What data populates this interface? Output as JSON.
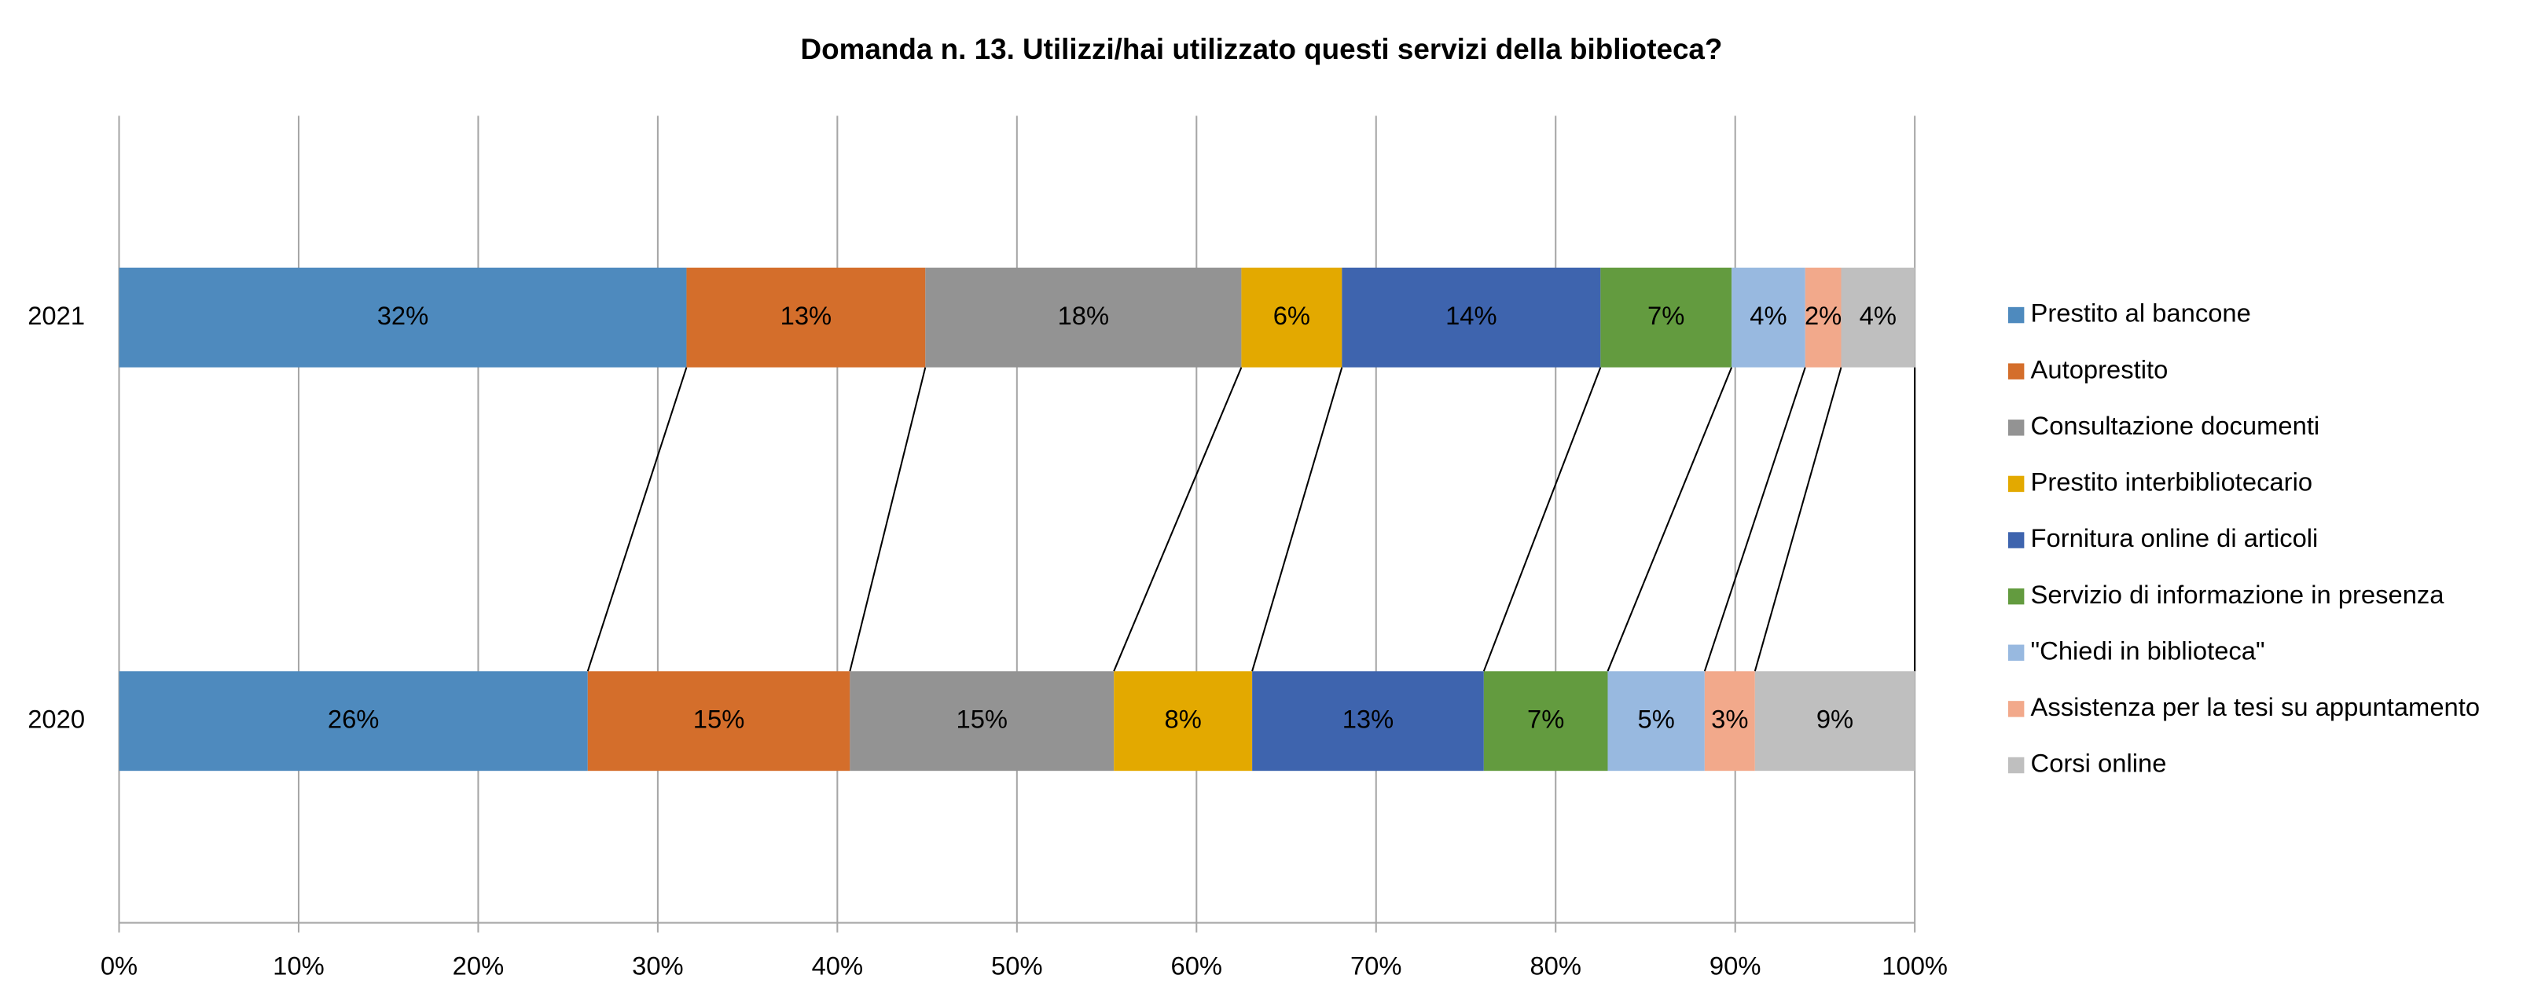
{
  "chart_data": {
    "type": "stacked_bar_horizontal_100",
    "title": "Domanda n. 13. Utilizzi/hai utilizzato questi servizi della biblioteca?",
    "categories": [
      "2021",
      "2020"
    ],
    "xlim": [
      0,
      100
    ],
    "xticks": [
      {
        "value": 0,
        "label": "0%"
      },
      {
        "value": 10,
        "label": "10%"
      },
      {
        "value": 20,
        "label": "20%"
      },
      {
        "value": 30,
        "label": "30%"
      },
      {
        "value": 40,
        "label": "40%"
      },
      {
        "value": 50,
        "label": "50%"
      },
      {
        "value": 60,
        "label": "60%"
      },
      {
        "value": 70,
        "label": "70%"
      },
      {
        "value": 80,
        "label": "80%"
      },
      {
        "value": 90,
        "label": "90%"
      },
      {
        "value": 100,
        "label": "100%"
      }
    ],
    "grid": true,
    "legend": "right",
    "series": [
      {
        "name": "Prestito al bancone",
        "color": "#4e8abe",
        "values": [
          31.6,
          26.1
        ],
        "value_labels": [
          "32%",
          "26%"
        ]
      },
      {
        "name": "Autoprestito",
        "color": "#d46e2b",
        "values": [
          13.3,
          14.6
        ],
        "value_labels": [
          "13%",
          "15%"
        ]
      },
      {
        "name": "Consultazione documenti",
        "color": "#939393",
        "values": [
          17.6,
          14.7
        ],
        "value_labels": [
          "18%",
          "15%"
        ]
      },
      {
        "name": "Prestito interbibliotecario",
        "color": "#e3a900",
        "values": [
          5.6,
          7.7
        ],
        "value_labels": [
          "6%",
          "8%"
        ]
      },
      {
        "name": "Fornitura online di articoli",
        "color": "#3e64ae",
        "values": [
          14.4,
          12.9
        ],
        "value_labels": [
          "14%",
          "13%"
        ]
      },
      {
        "name": "Servizio di informazione in presenza",
        "color": "#639b3f",
        "values": [
          7.3,
          6.9
        ],
        "value_labels": [
          "7%",
          "7%"
        ]
      },
      {
        "name": "\"Chiedi in biblioteca\"",
        "color": "#98b9e0",
        "values": [
          4.1,
          5.4
        ],
        "value_labels": [
          "4%",
          "5%"
        ]
      },
      {
        "name": "Assistenza per la tesi su appuntamento",
        "color": "#f2a98b",
        "values": [
          2.0,
          2.8
        ],
        "value_labels": [
          "2%",
          "3%"
        ]
      },
      {
        "name": "Corsi online",
        "color": "#bfbfbf",
        "values": [
          4.1,
          8.9
        ],
        "value_labels": [
          "4%",
          "9%"
        ]
      }
    ]
  }
}
